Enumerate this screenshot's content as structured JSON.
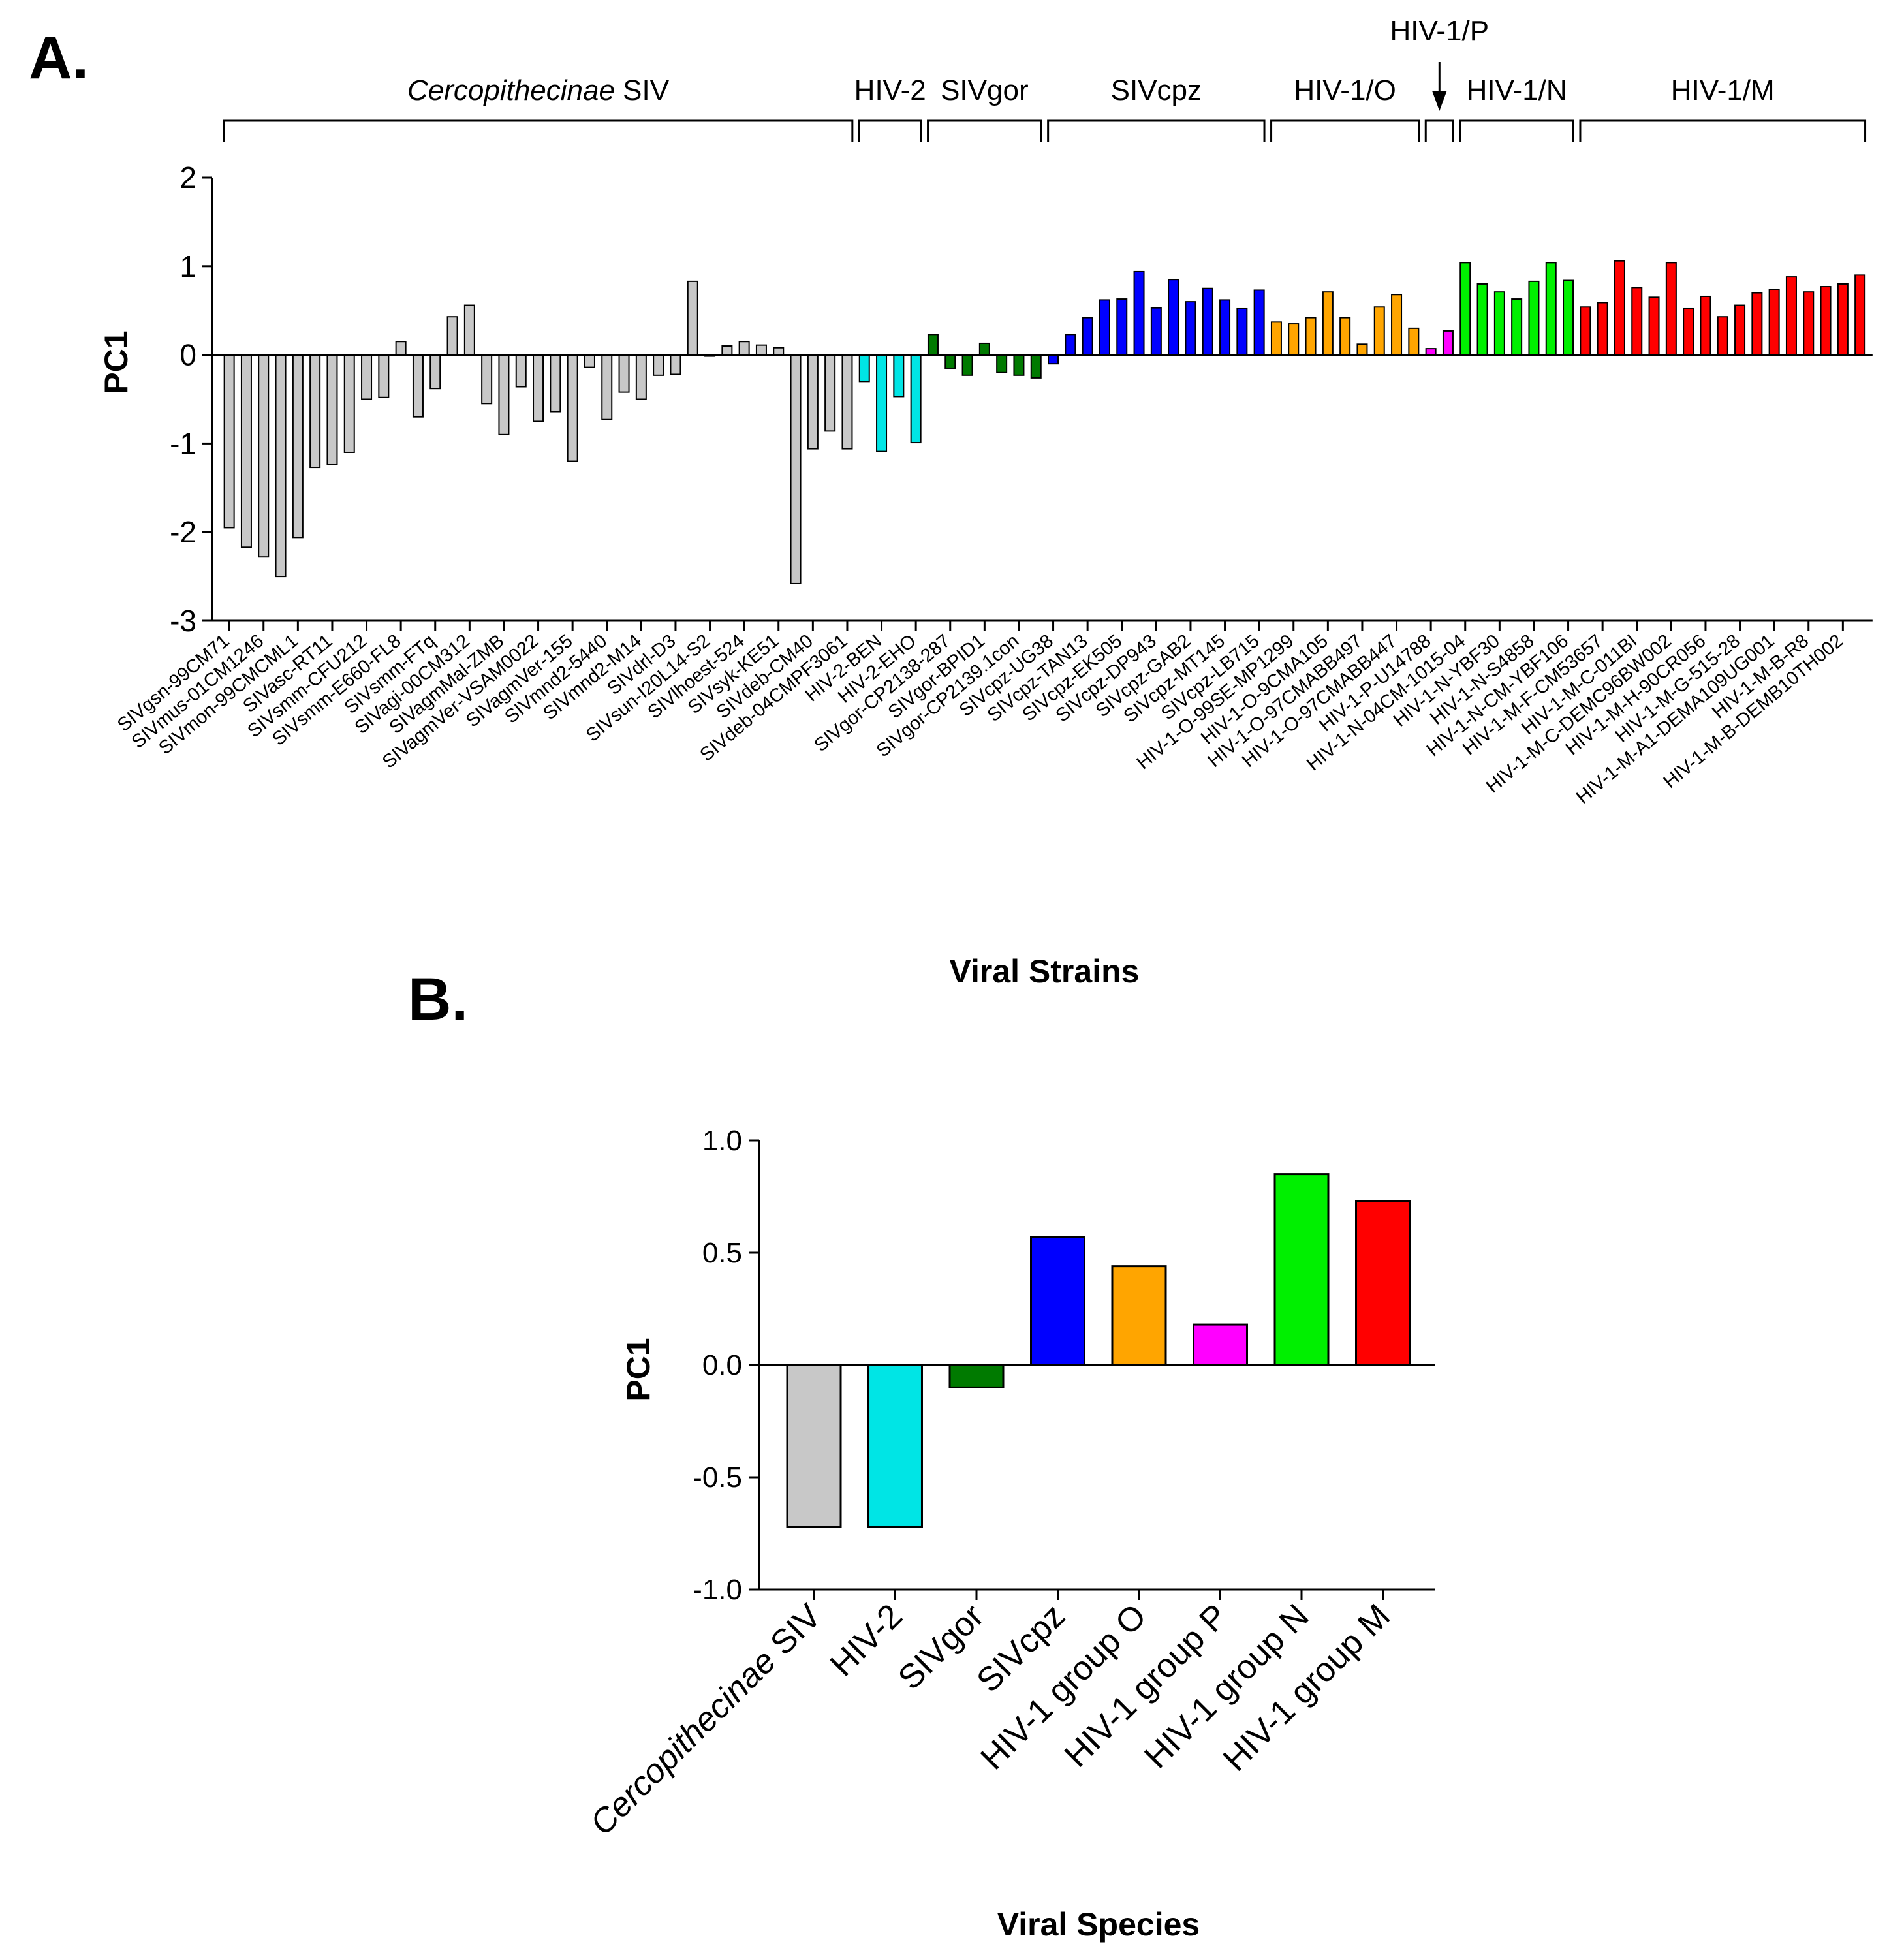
{
  "chart_data": [
    {
      "panel": "A.",
      "type": "bar",
      "ylabel": "PC1",
      "xlabel": "Viral Strains",
      "ylim": [
        -3,
        2
      ],
      "yticks": [
        "2",
        "1",
        "0",
        "-1",
        "-2",
        "-3"
      ],
      "groups": [
        {
          "name": "Cercopithecinae",
          "suffix": " SIV",
          "italic": true,
          "color": "#c8c8c8",
          "start": 0,
          "end": 37
        },
        {
          "name": "HIV-2",
          "suffix": "",
          "italic": false,
          "color": "#00e5e5",
          "start": 37,
          "end": 41
        },
        {
          "name": "SIVgor",
          "suffix": "",
          "italic": false,
          "color": "#007a00",
          "start": 41,
          "end": 48
        },
        {
          "name": "SIVcpz",
          "suffix": "",
          "italic": false,
          "color": "#0000ff",
          "start": 48,
          "end": 61
        },
        {
          "name": "HIV-1/O",
          "suffix": "",
          "italic": false,
          "color": "#ffa500",
          "start": 61,
          "end": 70
        },
        {
          "name": "HIV-1/P",
          "suffix": "",
          "italic": false,
          "color": "#ff00ff",
          "start": 70,
          "end": 72
        },
        {
          "name": "HIV-1/N",
          "suffix": "",
          "italic": false,
          "color": "#00f000",
          "start": 72,
          "end": 79
        },
        {
          "name": "HIV-1/M",
          "suffix": "",
          "italic": false,
          "color": "#ff0000",
          "start": 79,
          "end": 96
        }
      ],
      "values": [
        -1.95,
        -2.17,
        -2.28,
        -2.5,
        -2.06,
        -1.27,
        -1.24,
        -1.1,
        -0.5,
        -0.48,
        0.15,
        -0.7,
        -0.38,
        0.43,
        0.56,
        -0.55,
        -0.9,
        -0.36,
        -0.75,
        -0.64,
        -1.2,
        -0.14,
        -0.73,
        -0.42,
        -0.5,
        -0.23,
        -0.22,
        0.83,
        0.0,
        0.1,
        0.15,
        0.11,
        0.08,
        -2.58,
        -1.06,
        -0.86,
        -1.06,
        -0.3,
        -1.09,
        -0.47,
        -0.99,
        0.23,
        -0.15,
        -0.23,
        0.13,
        -0.2,
        -0.23,
        -0.26,
        -0.1,
        0.23,
        0.42,
        0.62,
        0.63,
        0.94,
        0.53,
        0.85,
        0.6,
        0.75,
        0.62,
        0.52,
        0.73,
        0.37,
        0.35,
        0.42,
        0.71,
        0.42,
        0.12,
        0.54,
        0.68,
        0.3,
        0.07,
        0.27,
        1.04,
        0.8,
        0.71,
        0.63,
        0.83,
        1.04,
        0.84,
        0.54,
        0.59,
        1.06,
        0.76,
        0.65,
        1.04,
        0.52,
        0.66,
        0.43,
        0.56,
        0.7,
        0.74,
        0.88,
        0.71,
        0.77,
        0.8,
        0.9
      ],
      "tick_labels": [
        "SIVgsn-99CM71",
        "SIVmus-01CM1246",
        "SIVmon-99CMCML1",
        "SIVasc-RT11",
        "SIVsmm-CFU212",
        "SIVsmm-E660-FL8",
        "SIVsmm-FTq",
        "SIVagi-00CM312",
        "SIVagmMal-ZMB",
        "SIVagmVer-VSAM0022",
        "SIVagmVer-155",
        "SIVmnd2-5440",
        "SIVmnd2-M14",
        "SIVdrl-D3",
        "SIVsun-I20L14-S2",
        "SIVlhoest-524",
        "SIVsyk-KE51",
        "SIVdeb-CM40",
        "SIVdeb-04CMPF3061",
        "HIV-2-BEN",
        "HIV-2-EHO",
        "SIVgor-CP2138-287",
        "SIVgor-BPID1",
        "SIVgor-CP2139.1con",
        "SIVcpz-UG38",
        "SIVcpz-TAN13",
        "SIVcpz-EK505",
        "SIVcpz-DP943",
        "SIVcpz-GAB2",
        "SIVcpz-MT145",
        "SIVcpz-LB715",
        "HIV-1-O-99SE-MP1299",
        "HIV-1-O-9CMA105",
        "HIV-1-O-97CMABB497",
        "HIV-1-O-97CMABB447",
        "HIV-1-P-U14788",
        "HIV-1-N-04CM-1015-04",
        "HIV-1-N-YBF30",
        "HIV-1-N-S4858",
        "HIV-1-N-CM-YBF106",
        "HIV-1-M-F-CM53657",
        "HIV-1-M-C-011BI",
        "HIV-1-M-C-DEMC96BW002",
        "HIV-1-M-H-90CR056",
        "HIV-1-M-G-515-28",
        "HIV-1-M-A1-DEMA109UG001",
        "HIV-1-M-B-R8",
        "HIV-1-M-B-DEMB10TH002"
      ]
    },
    {
      "panel": "B.",
      "type": "bar",
      "ylabel": "PC1",
      "xlabel": "Viral Species",
      "ylim": [
        -1.0,
        1.0
      ],
      "yticks": [
        "1.0",
        "0.5",
        "0.0",
        "-0.5",
        "-1.0"
      ],
      "categories": [
        {
          "name": "Cercopithecinae",
          "suffix": " SIV",
          "italic": true
        },
        {
          "name": "HIV-2",
          "suffix": "",
          "italic": false
        },
        {
          "name": "SIVgor",
          "suffix": "",
          "italic": false
        },
        {
          "name": "SIVcpz",
          "suffix": "",
          "italic": false
        },
        {
          "name": "HIV-1 group O",
          "suffix": "",
          "italic": false
        },
        {
          "name": "HIV-1 group P",
          "suffix": "",
          "italic": false
        },
        {
          "name": "HIV-1 group N",
          "suffix": "",
          "italic": false
        },
        {
          "name": "HIV-1 group M",
          "suffix": "",
          "italic": false
        }
      ],
      "values": [
        -0.72,
        -0.72,
        -0.1,
        0.57,
        0.44,
        0.18,
        0.85,
        0.73
      ],
      "colors": [
        "#c8c8c8",
        "#00e5e5",
        "#007a00",
        "#0000ff",
        "#ffa500",
        "#ff00ff",
        "#00f000",
        "#ff0000"
      ]
    }
  ]
}
